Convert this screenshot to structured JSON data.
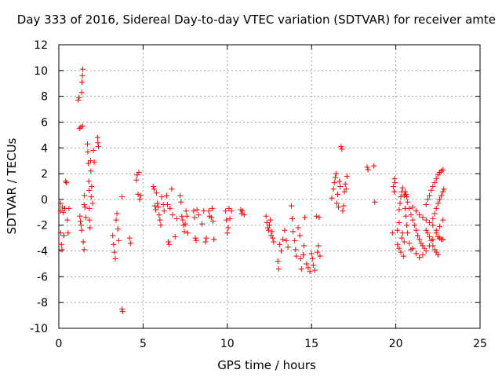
{
  "chart_data": {
    "type": "scatter",
    "title": "Day 333 of 2016, Sidereal Day-to-day VTEC variation (SDTVAR) for receiver amte",
    "xlabel": "GPS time / hours",
    "ylabel": "SDTVAR / TECUs",
    "xlim": [
      0,
      25
    ],
    "ylim": [
      -10,
      12
    ],
    "x_ticks": [
      "0",
      "5",
      "10",
      "15",
      "20",
      "25"
    ],
    "y_ticks": [
      "-10",
      "-8",
      "-6",
      "-4",
      "-2",
      "0",
      "2",
      "4",
      "6",
      "8",
      "10",
      "12"
    ],
    "grid": true,
    "marker": "+",
    "color": "#ff0000",
    "series": [
      {
        "values": [
          [
            0.1,
            -0.3
          ],
          [
            0.1,
            -0.9
          ],
          [
            0.12,
            -2.6
          ],
          [
            0.15,
            -3.5
          ],
          [
            0.18,
            -3.9
          ],
          [
            0.2,
            -0.6
          ],
          [
            0.25,
            -1.0
          ],
          [
            0.3,
            -2.8
          ],
          [
            0.35,
            -0.7
          ],
          [
            0.4,
            1.4
          ],
          [
            0.45,
            1.3
          ],
          [
            0.5,
            -1.6
          ],
          [
            0.55,
            -2.6
          ],
          [
            0.6,
            -0.7
          ],
          [
            1.15,
            7.7
          ],
          [
            1.2,
            7.9
          ],
          [
            1.22,
            5.5
          ],
          [
            1.25,
            -1.3
          ],
          [
            1.28,
            -1.7
          ],
          [
            1.3,
            5.6
          ],
          [
            1.32,
            -2.0
          ],
          [
            1.35,
            -2.4
          ],
          [
            1.35,
            8.3
          ],
          [
            1.37,
            9.1
          ],
          [
            1.4,
            9.6
          ],
          [
            1.42,
            10.1
          ],
          [
            1.4,
            5.7
          ],
          [
            1.45,
            -3.3
          ],
          [
            1.5,
            -3.9
          ],
          [
            1.5,
            -0.4
          ],
          [
            1.52,
            0.3
          ],
          [
            1.55,
            -0.6
          ],
          [
            1.6,
            -1.4
          ],
          [
            1.7,
            4.3
          ],
          [
            1.72,
            3.7
          ],
          [
            1.75,
            2.8
          ],
          [
            1.78,
            1.4
          ],
          [
            1.8,
            0.7
          ],
          [
            1.8,
            -0.7
          ],
          [
            1.82,
            -1.6
          ],
          [
            1.85,
            -2.2
          ],
          [
            1.88,
            3.0
          ],
          [
            1.9,
            2.2
          ],
          [
            1.92,
            0.2
          ],
          [
            1.95,
            1.0
          ],
          [
            2.0,
            -0.3
          ],
          [
            2.05,
            3.8
          ],
          [
            2.1,
            2.9
          ],
          [
            2.3,
            4.8
          ],
          [
            2.32,
            4.4
          ],
          [
            2.35,
            4.1
          ],
          [
            3.2,
            -2.8
          ],
          [
            3.25,
            -3.5
          ],
          [
            3.3,
            -4.1
          ],
          [
            3.35,
            -4.6
          ],
          [
            3.4,
            -1.6
          ],
          [
            3.45,
            -1.1
          ],
          [
            3.5,
            -2.3
          ],
          [
            3.55,
            -3.2
          ],
          [
            3.75,
            0.2
          ],
          [
            3.75,
            -8.5
          ],
          [
            3.78,
            -8.7
          ],
          [
            4.2,
            -3.0
          ],
          [
            4.25,
            -3.4
          ],
          [
            4.6,
            1.5
          ],
          [
            4.65,
            1.9
          ],
          [
            4.7,
            0.4
          ],
          [
            4.75,
            2.1
          ],
          [
            4.8,
            0.0
          ],
          [
            4.85,
            0.3
          ],
          [
            5.6,
            1.0
          ],
          [
            5.65,
            0.8
          ],
          [
            5.7,
            -0.5
          ],
          [
            5.75,
            -0.8
          ],
          [
            5.8,
            0.5
          ],
          [
            5.85,
            -0.3
          ],
          [
            5.9,
            -0.6
          ],
          [
            5.95,
            -1.2
          ],
          [
            6.0,
            -1.6
          ],
          [
            6.05,
            -2.0
          ],
          [
            6.1,
            0.2
          ],
          [
            6.2,
            -0.4
          ],
          [
            6.25,
            -0.9
          ],
          [
            6.4,
            0.3
          ],
          [
            6.45,
            -0.4
          ],
          [
            6.5,
            -3.3
          ],
          [
            6.55,
            -3.5
          ],
          [
            6.6,
            -0.7
          ],
          [
            6.7,
            0.8
          ],
          [
            6.75,
            -1.2
          ],
          [
            6.9,
            -2.9
          ],
          [
            7.0,
            -1.5
          ],
          [
            7.2,
            0.3
          ],
          [
            7.25,
            -0.2
          ],
          [
            7.3,
            -1.3
          ],
          [
            7.35,
            -1.6
          ],
          [
            7.4,
            -2.0
          ],
          [
            7.45,
            -2.5
          ],
          [
            7.5,
            -1.9
          ],
          [
            7.55,
            -0.9
          ],
          [
            7.6,
            -1.3
          ],
          [
            7.65,
            -2.6
          ],
          [
            8.0,
            -0.9
          ],
          [
            8.05,
            -1.4
          ],
          [
            8.1,
            -3.0
          ],
          [
            8.15,
            -3.2
          ],
          [
            8.2,
            -0.8
          ],
          [
            8.3,
            -1.2
          ],
          [
            8.5,
            -1.9
          ],
          [
            8.6,
            -0.9
          ],
          [
            8.7,
            -3.3
          ],
          [
            8.75,
            -3.0
          ],
          [
            8.9,
            -0.9
          ],
          [
            8.95,
            -1.3
          ],
          [
            9.05,
            -1.4
          ],
          [
            9.1,
            -0.7
          ],
          [
            9.15,
            -1.7
          ],
          [
            9.2,
            -3.1
          ],
          [
            9.9,
            -0.9
          ],
          [
            9.95,
            -1.6
          ],
          [
            10.0,
            -2.6
          ],
          [
            10.05,
            -2.2
          ],
          [
            10.1,
            -0.7
          ],
          [
            10.15,
            -1.5
          ],
          [
            10.25,
            -0.9
          ],
          [
            10.8,
            -0.8
          ],
          [
            10.85,
            -1.1
          ],
          [
            10.9,
            -0.9
          ],
          [
            11.0,
            -1.2
          ],
          [
            12.3,
            -1.3
          ],
          [
            12.35,
            -1.8
          ],
          [
            12.4,
            -2.2
          ],
          [
            12.45,
            -2.4
          ],
          [
            12.5,
            -2.0
          ],
          [
            12.55,
            -1.6
          ],
          [
            12.6,
            -2.8
          ],
          [
            12.65,
            -2.5
          ],
          [
            12.7,
            -3.0
          ],
          [
            12.75,
            -3.3
          ],
          [
            13.0,
            -4.8
          ],
          [
            13.05,
            -5.4
          ],
          [
            13.1,
            -3.5
          ],
          [
            13.2,
            -4.0
          ],
          [
            13.3,
            -3.1
          ],
          [
            13.4,
            -2.4
          ],
          [
            13.5,
            -3.2
          ],
          [
            13.6,
            -3.7
          ],
          [
            13.8,
            -0.5
          ],
          [
            13.85,
            -1.5
          ],
          [
            13.9,
            -2.5
          ],
          [
            14.0,
            -3.2
          ],
          [
            14.05,
            -3.9
          ],
          [
            14.1,
            -4.4
          ],
          [
            14.2,
            -2.2
          ],
          [
            14.3,
            -2.8
          ],
          [
            14.35,
            -4.6
          ],
          [
            14.4,
            -5.4
          ],
          [
            14.5,
            -4.3
          ],
          [
            14.55,
            -3.6
          ],
          [
            14.6,
            -1.4
          ],
          [
            14.7,
            -5.0
          ],
          [
            14.8,
            -5.3
          ],
          [
            14.9,
            -5.6
          ],
          [
            15.0,
            -4.2
          ],
          [
            15.05,
            -4.6
          ],
          [
            15.1,
            -5.1
          ],
          [
            15.2,
            -5.5
          ],
          [
            15.3,
            -1.3
          ],
          [
            15.35,
            -4.1
          ],
          [
            15.4,
            -3.6
          ],
          [
            15.45,
            -1.4
          ],
          [
            15.5,
            -4.4
          ],
          [
            16.2,
            0.1
          ],
          [
            16.3,
            0.8
          ],
          [
            16.35,
            1.3
          ],
          [
            16.4,
            1.7
          ],
          [
            16.45,
            2.0
          ],
          [
            16.5,
            -0.3
          ],
          [
            16.55,
            0.4
          ],
          [
            16.6,
            -0.6
          ],
          [
            16.65,
            1.4
          ],
          [
            16.7,
            1.0
          ],
          [
            16.75,
            4.1
          ],
          [
            16.8,
            3.9
          ],
          [
            16.85,
            -0.9
          ],
          [
            16.9,
            -0.5
          ],
          [
            16.95,
            0.6
          ],
          [
            17.0,
            1.2
          ],
          [
            17.05,
            0.8
          ],
          [
            17.1,
            1.8
          ],
          [
            18.3,
            2.5
          ],
          [
            18.35,
            2.3
          ],
          [
            18.7,
            2.6
          ],
          [
            18.75,
            -0.2
          ],
          [
            19.8,
            -2.6
          ],
          [
            19.85,
            1.0
          ],
          [
            19.9,
            0.6
          ],
          [
            19.92,
            1.6
          ],
          [
            19.95,
            1.3
          ],
          [
            20.1,
            -3.5
          ],
          [
            20.2,
            -3.8
          ],
          [
            20.3,
            -4.1
          ],
          [
            20.35,
            -3.0
          ],
          [
            20.4,
            -2.6
          ],
          [
            20.45,
            -4.4
          ],
          [
            20.5,
            -3.3
          ],
          [
            20.55,
            -0.7
          ],
          [
            20.6,
            -1.3
          ],
          [
            20.65,
            -2.0
          ],
          [
            20.7,
            -2.6
          ],
          [
            20.8,
            -3.4
          ],
          [
            20.9,
            -3.9
          ],
          [
            20.2,
            -0.8
          ],
          [
            20.25,
            -0.3
          ],
          [
            20.3,
            0.2
          ],
          [
            20.35,
            0.6
          ],
          [
            20.4,
            0.9
          ],
          [
            20.5,
            0.3
          ],
          [
            20.55,
            0.6
          ],
          [
            20.6,
            0.4
          ],
          [
            20.65,
            0.2
          ],
          [
            20.7,
            -0.2
          ],
          [
            20.8,
            -0.7
          ],
          [
            20.9,
            -1.2
          ],
          [
            21.0,
            -1.6
          ],
          [
            21.1,
            -2.0
          ],
          [
            21.2,
            -2.4
          ],
          [
            21.3,
            -2.8
          ],
          [
            21.4,
            -3.1
          ],
          [
            21.5,
            -3.4
          ],
          [
            21.6,
            -3.6
          ],
          [
            21.7,
            -3.8
          ],
          [
            21.0,
            -0.6
          ],
          [
            21.2,
            -0.9
          ],
          [
            21.4,
            -1.2
          ],
          [
            21.6,
            -1.4
          ],
          [
            21.8,
            -1.6
          ],
          [
            22.0,
            -1.8
          ],
          [
            22.2,
            -2.0
          ],
          [
            22.4,
            -2.4
          ],
          [
            21.0,
            -3.8
          ],
          [
            21.2,
            -4.2
          ],
          [
            21.4,
            -4.5
          ],
          [
            21.6,
            -4.3
          ],
          [
            21.8,
            -4.0
          ],
          [
            22.0,
            -3.6
          ],
          [
            22.2,
            -3.1
          ],
          [
            22.4,
            -2.6
          ],
          [
            22.6,
            -2.1
          ],
          [
            22.8,
            -1.6
          ],
          [
            21.8,
            -2.4
          ],
          [
            21.9,
            -2.6
          ],
          [
            22.0,
            -2.9
          ],
          [
            22.1,
            -3.2
          ],
          [
            22.2,
            -3.6
          ],
          [
            22.3,
            -3.9
          ],
          [
            22.4,
            -4.1
          ],
          [
            22.5,
            -4.3
          ],
          [
            20.1,
            -2.4
          ],
          [
            20.2,
            -1.8
          ],
          [
            21.8,
            -0.4
          ],
          [
            21.9,
            0.0
          ],
          [
            22.0,
            0.3
          ],
          [
            22.1,
            0.7
          ],
          [
            22.2,
            1.0
          ],
          [
            22.3,
            1.3
          ],
          [
            22.4,
            1.6
          ],
          [
            22.5,
            1.9
          ],
          [
            22.6,
            2.1
          ],
          [
            22.7,
            2.2
          ],
          [
            22.8,
            2.3
          ],
          [
            22.2,
            -1.5
          ],
          [
            22.3,
            -1.1
          ],
          [
            22.4,
            -0.7
          ],
          [
            22.5,
            -0.3
          ],
          [
            22.6,
            0.0
          ],
          [
            22.7,
            0.3
          ],
          [
            22.8,
            0.6
          ],
          [
            22.85,
            0.8
          ],
          [
            22.5,
            -2.9
          ],
          [
            22.6,
            -3.0
          ],
          [
            22.7,
            -3.1
          ],
          [
            22.8,
            -3.1
          ]
        ]
      }
    ]
  }
}
